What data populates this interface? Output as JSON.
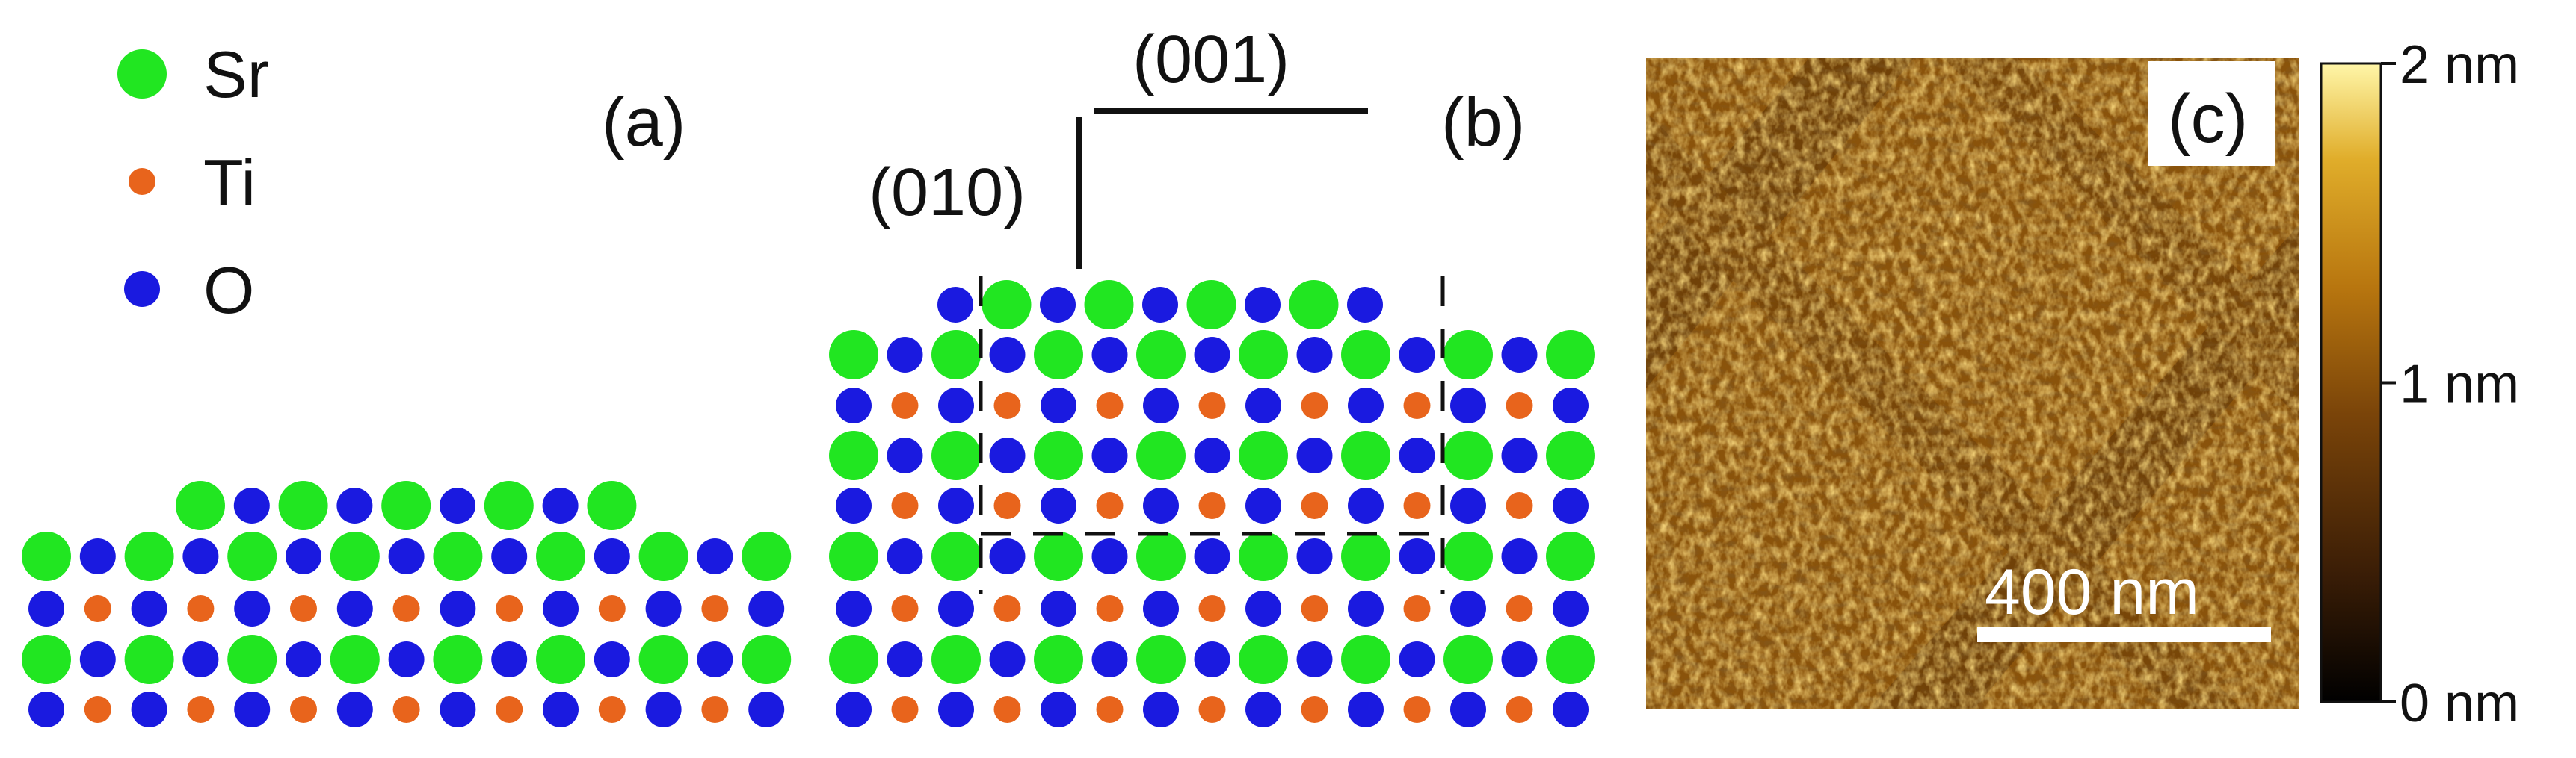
{
  "legend": {
    "items": [
      {
        "label": "Sr",
        "color": "#21E621"
      },
      {
        "label": "Ti",
        "color": "#E8641C"
      },
      {
        "label": "O",
        "color": "#1A1AE0"
      }
    ]
  },
  "panels": {
    "a": {
      "label": "(a)"
    },
    "b": {
      "label": "(b)",
      "direction_vertical": "(010)",
      "direction_horizontal": "(001)"
    },
    "c": {
      "label": "(c)",
      "scale_bar": "400 nm"
    }
  },
  "colorbar": {
    "ticks": [
      {
        "label": "2 nm",
        "value": 2
      },
      {
        "label": "1 nm",
        "value": 1
      },
      {
        "label": "0 nm",
        "value": 0
      }
    ],
    "colors": [
      "#000000",
      "#3a1d06",
      "#7a4409",
      "#b8760f",
      "#e0ad2a",
      "#fff6a8"
    ]
  }
}
